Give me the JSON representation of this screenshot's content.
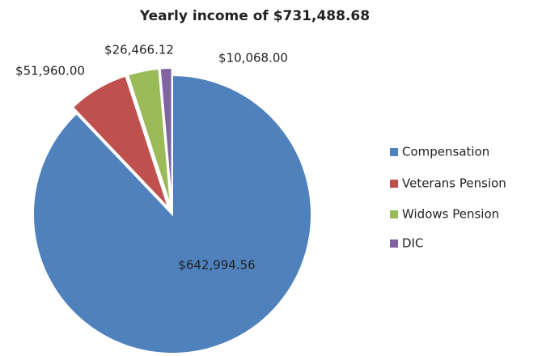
{
  "chart_data": {
    "type": "pie",
    "title": "Yearly income of $731,488.68",
    "categories": [
      "Compensation",
      "Veterans Pension",
      "Widows Pension",
      "DIC"
    ],
    "values": [
      642994.56,
      51960.0,
      26466.12,
      10068.0
    ],
    "value_labels": [
      "$642,994.56",
      "$51,960.00",
      "$26,466.12",
      "$10,068.00"
    ],
    "colors": [
      "#4f81bd",
      "#c0504d",
      "#9bbb59",
      "#8064a2"
    ],
    "legend": "right"
  }
}
